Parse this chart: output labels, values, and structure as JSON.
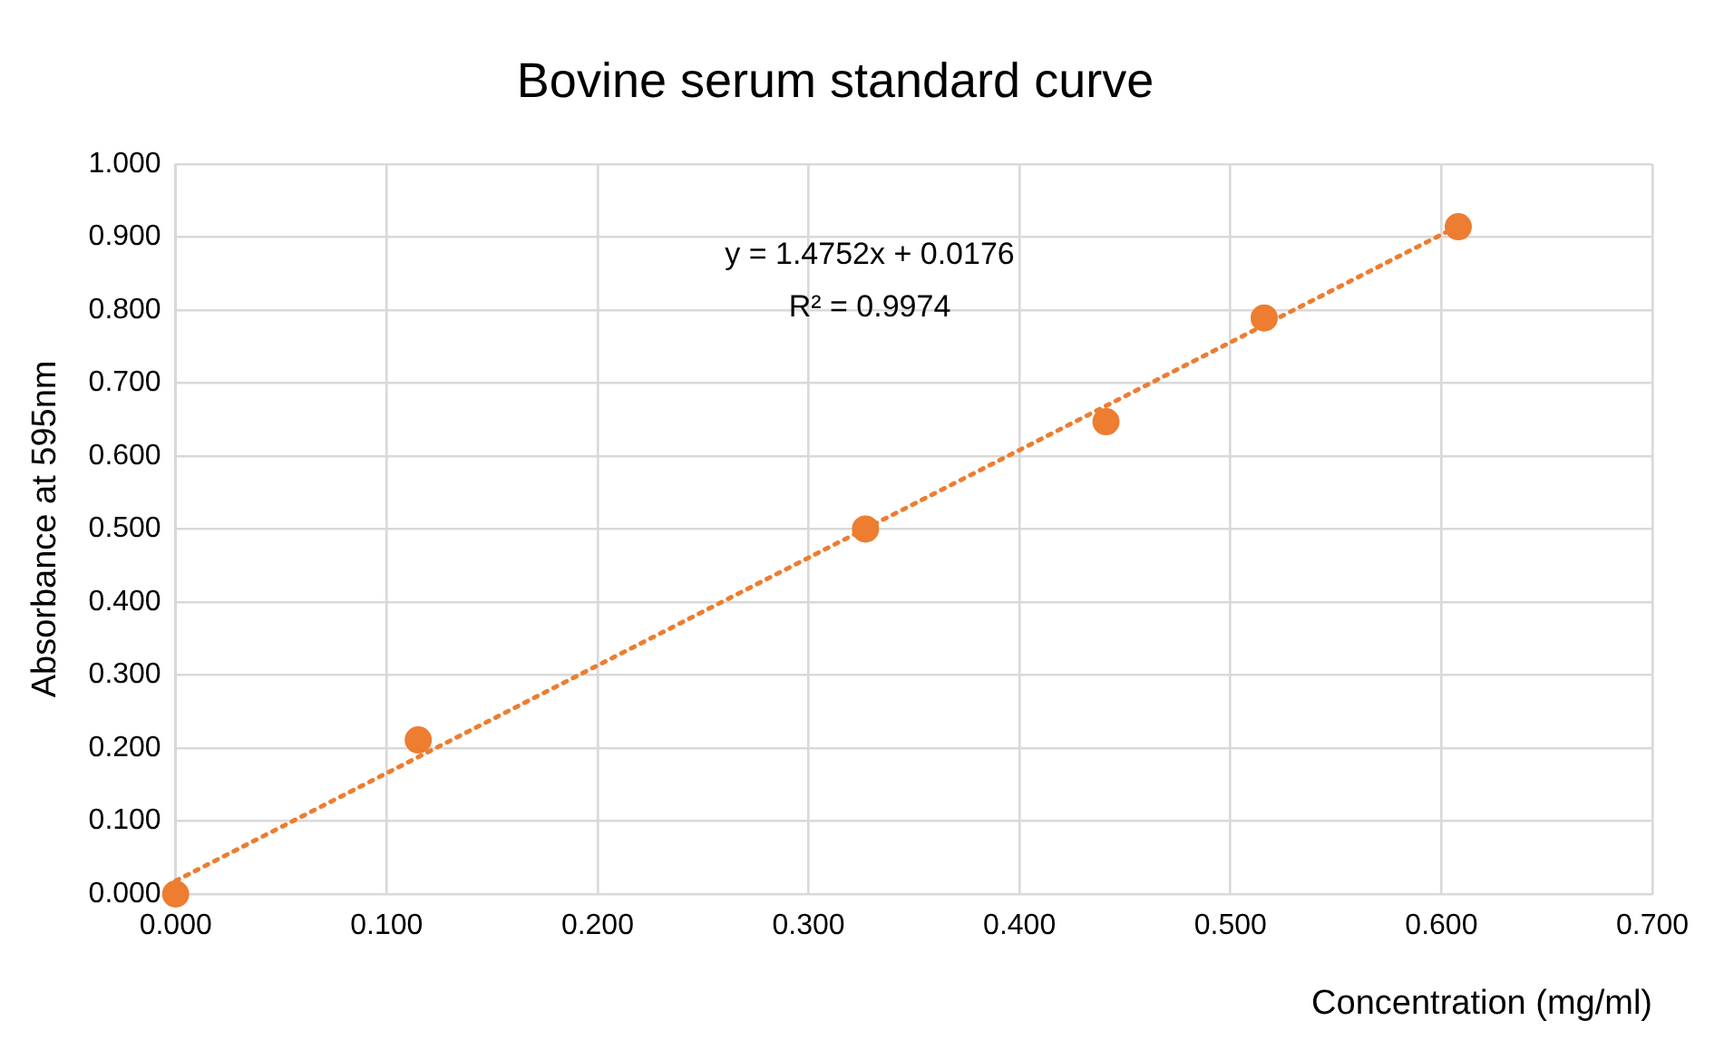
{
  "chart_data": {
    "type": "scatter",
    "title": "Bovine serum standard curve",
    "xlabel": "Concentration (mg/ml)",
    "ylabel": "Absorbance at 595nm",
    "series": [
      {
        "type": "scatter",
        "color": "#ed7d31",
        "x": [
          0,
          0.115,
          0.327,
          0.441,
          0.516,
          0.608
        ],
        "values": [
          0,
          0.211,
          0.5,
          0.647,
          0.789,
          0.914
        ]
      },
      {
        "type": "line",
        "color": "#ed7d31",
        "line_style": "dotted",
        "marker": "none",
        "x": [
          0,
          0.608
        ],
        "values": [
          0.018,
          0.915
        ]
      }
    ],
    "annotations": [
      "y = 1.4752x + 0.0176",
      "R² = 0.9974"
    ],
    "xlim": [
      0,
      0.7
    ],
    "ylim": [
      0,
      1
    ],
    "xticks": [
      {
        "value": 0,
        "label": "0.000"
      },
      {
        "value": 0.1,
        "label": "0.100"
      },
      {
        "value": 0.2,
        "label": "0.200"
      },
      {
        "value": 0.3,
        "label": "0.300"
      },
      {
        "value": 0.4,
        "label": "0.400"
      },
      {
        "value": 0.5,
        "label": "0.500"
      },
      {
        "value": 0.6,
        "label": "0.600"
      },
      {
        "value": 0.7,
        "label": "0.700"
      }
    ],
    "yticks": [
      {
        "value": 0,
        "label": "0.000"
      },
      {
        "value": 0.1,
        "label": "0.100"
      },
      {
        "value": 0.2,
        "label": "0.200"
      },
      {
        "value": 0.3,
        "label": "0.300"
      },
      {
        "value": 0.4,
        "label": "0.400"
      },
      {
        "value": 0.5,
        "label": "0.500"
      },
      {
        "value": 0.6,
        "label": "0.600"
      },
      {
        "value": 0.7,
        "label": "0.700"
      },
      {
        "value": 0.8,
        "label": "0.800"
      },
      {
        "value": 0.9,
        "label": "0.900"
      },
      {
        "value": 1,
        "label": "1.000"
      }
    ],
    "grid": true,
    "legend": false,
    "marker": "circle"
  }
}
